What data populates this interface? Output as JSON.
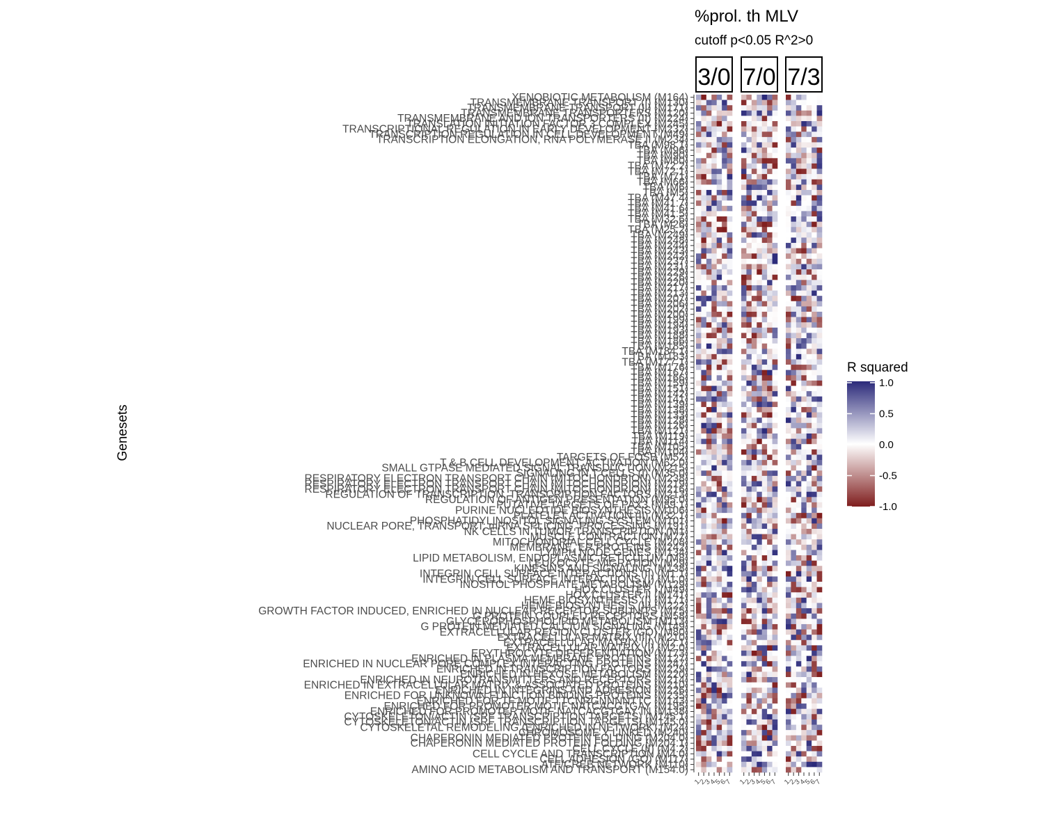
{
  "chart_data": {
    "type": "heatmap",
    "title": "%prol. th MLV",
    "subtitle": "cutoff p<0.05 R^2>0",
    "ylabel": "Genesets",
    "xlabel": "",
    "panels": [
      "3/0",
      "7/0",
      "7/3"
    ],
    "columns_per_panel": 7,
    "legend": {
      "title": "R squared",
      "ticks": [
        "1.0",
        "0.5",
        "0.0",
        "-0.5",
        "-1.0"
      ],
      "range": [
        -1,
        1
      ],
      "colors": {
        "low": "#7f1d1d",
        "mid": "#ffffff",
        "high": "#2b2a7a"
      },
      "position": "right"
    },
    "rows": [
      "XENOBIOTIC METABOLISM (M164)",
      "TRANSMEMBRANE TRANSPORT (I) (M130)",
      "TRANSMEMBRANE TRANSPORT (II) (M171)",
      "TRANSMEMBRANE TRANSPORTERS (M120)",
      "TRANSMEMBRANE AND ION TRANSPORTERS (II) (M224)",
      "TRANSLATION INITIATION FACTOR 3 COMPLEX (M245)",
      "TRANSCRIPTIONAL REGULATION IN EARLY DEVELOPMENT (M232)",
      "TRANSCRIPTION REGULATION IN CELL DEVELOPMENT (M49)",
      "TRANSCRIPTION ELONGATION, RNA POLYMERASE II (M234)",
      "TBA (M98.1)",
      "TBA (M96)",
      "TBA (M90)",
      "TBA (M80)",
      "TBA (M72.2)",
      "TBA (M72.1)",
      "TBA (M71)",
      "TBA (M66)",
      "TBA (M6)",
      "TBA (M5)",
      "TBA (M47.4)",
      "TBA (M41.7)",
      "TBA (M41.6)",
      "TBA (M41.5)",
      "TBA (M32.6)",
      "TBA (M26)",
      "TBA (M25.2)",
      "TBA (M249)",
      "TBA (M248)",
      "TBA (M244)",
      "TBA (M243)",
      "TBA (M242)",
      "TBA (M237)",
      "TBA (M231)",
      "TBA (M229)",
      "TBA (M226)",
      "TBA (M220)",
      "TBA (M217)",
      "TBA (M213)",
      "TBA (M207)",
      "TBA (M206)",
      "TBA (M202)",
      "TBA (M200)",
      "TBA (M199)",
      "TBA (M194)",
      "TBA (M193)",
      "TBA (M188)",
      "TBA (M186)",
      "TBA (M185)",
      "TBA (M184.1)",
      "TBA (M183)",
      "TBA (M177.1)",
      "TBA (M176)",
      "TBA (M167)",
      "TBA (M166)",
      "TBA (M159)",
      "TBA (M151)",
      "TBA (M142)",
      "TBA (M141)",
      "TBA (M139)",
      "TBA (M138)",
      "TBA (M133)",
      "TBA (M128)",
      "TBA (M126)",
      "TBA (M121)",
      "TBA (M119)",
      "TBA (M114)",
      "TBA (M105)",
      "TBA (M104)",
      "TARGETS OF FOSB (M52)",
      "T & B CELL DEVELOPMENT, ACTIVATION (M62.0)",
      "SMALL GTPASE MEDIATED SIGNAL TRANSDUCTION (M215)",
      "SIGNALING IN T CELLS (I) (M35.0)",
      "RESPIRATORY ELECTRON TRANSPORT CHAIN (MITOCHONDRION) (M238)",
      "RESPIRATORY ELECTRON TRANSPORT CHAIN (MITOCHONDRION) (M219)",
      "RESPIRATORY ELECTRON TRANSPORT CHAIN (MITOCHONDRION) (M216)",
      "REGULATION OF TRANSCRIPTION, TRANSCRIPTION FACTORS (M213)",
      "REGULATION OF ANTIGEN PRESENTATION (M95.0)",
      "PUTATIVE TARGETS OF PAX3 (M89.1)",
      "PURINE NUCLEOTIDE BIOSYNTHESIS (M106)",
      "PLATELET ACTIVATION (II) (M32.1)",
      "PHOSPHATIDYLINOSITOL SIGNALING SYSTEM (M101)",
      "NUCLEAR PORE, TRANSPORT; mRNA SPLICING, PROCESSING (M191)",
      "NK CELLS IN TUMOR TRANSCRIPTION (M1)",
      "MUSCLE CONTRACTION (M77)",
      "MITOCHONDRIAL CELL CYCLE (M208)",
      "MEMBRANE, ER PROTEINS (M242)",
      "LYMPH NODE GENES (M134)",
      "LIPID METABOLISM, ENDOPLASMIC RETICULUM (M8)",
      "LEUKOCYTE MIGRATION (M29)",
      "KINESINS AND SIGNALING (M138)",
      "INTEGRIN CELL SURFACE INTERACTIONS (II) (M1.1)",
      "INTEGRIN CELL SURFACE INTERACTIONS (I) (M1.0)",
      "INOSITOL PHOSPHATE METABOLISM (M129)",
      "HOX CLUSTER I (M49)",
      "HOX CLUSTER II (M141)",
      "HEME BIOSYNTHESIS (I) (M171)",
      "HEME BIOSYNTHESIS (II) (M222)",
      "GROWTH FACTOR INDUCED, ENRICHED IN NUCLEAR RECEPTOR SUBUNITS (M75)",
      "G PROTEIN COUPLED RECEPTORS (M58)",
      "GLYCEROPHOSPHOLIPID METABOLISM (M113)",
      "G PROTEIN MEDIATED CALCIUM SIGNALING (M149)",
      "EXTRACELLULAR REGION CLUSTER (GO) (M80)",
      "EXTRACELLULAR MATRIX (III) (M210)",
      "EXTRACELLULAR MATRIX (II) (M2.1)",
      "EXTRACELLULAR MATRIX (I) (M2.0)",
      "ERYTHROCYTE DIFFERENTIATION (M173)",
      "ENRICHED IN PLASMA MEMBRANE PROTEINS (M127)",
      "ENRICHED IN NUCLEAR PORE COMPLEX INTERACTING PROTEINS (M247)",
      "ENRICHED IN TRANSCRIPTION FACTORS (M229)",
      "ENRICHED IN HEXOSE METABOLISM (M220)",
      "ENRICHED IN NEUROTRANSMITTERS AND RECEPTORS (M214)",
      "ENRICHED IN EXTRACELLULAR MATRIX & ASSOCIATED PROTEINS (M210)",
      "ENRICHED IN INTEGRINS AND ADHESION (M226)",
      "ENRICHED FOR UNKNOWN FUNCTION BINDING PROTEINS (M235)",
      "ENRICHED FOR TF MOTIF TTCNRGNNNNTTC (M143)",
      "ENRICHED FOR PROMOTER MOTIF NATCACGTGAY (M195)",
      "ENRICHED FOR PROMOTER MOTIF NATCACGTGAY IN (M138)",
      "CYTOSKELETON/ACTIN (SRF TRANSCRIPTION TARGETS) (M145.1)",
      "CYTOSKELETON/ACTIN (SRF TRANSCRIPTION TARGETS) (M145.0)",
      "CYTOSKELETAL REMODELING (ENRICHED IN NETWORK) (M24)",
      "CHROMOSOME Y LINKED (M240)",
      "CHAPERONIN MEDIATED PROTEIN FOLDING (M204.0)",
      "CHAPERONIN MEDIATED PROTEIN FOLDING (M204.1)",
      "CELL CYCLE (II) (M4.2)",
      "CELL CYCLE AND TRANSCRIPTION (M4.0)",
      "CELL ADHESION (GO) (M117)",
      "ATF/CREB NETWORK (M110)",
      "AMINO ACID METABOLISM AND TRANSPORT (M154.0)"
    ],
    "columns": [
      "1",
      "2",
      "3",
      "4",
      "5",
      "6",
      "7"
    ]
  }
}
